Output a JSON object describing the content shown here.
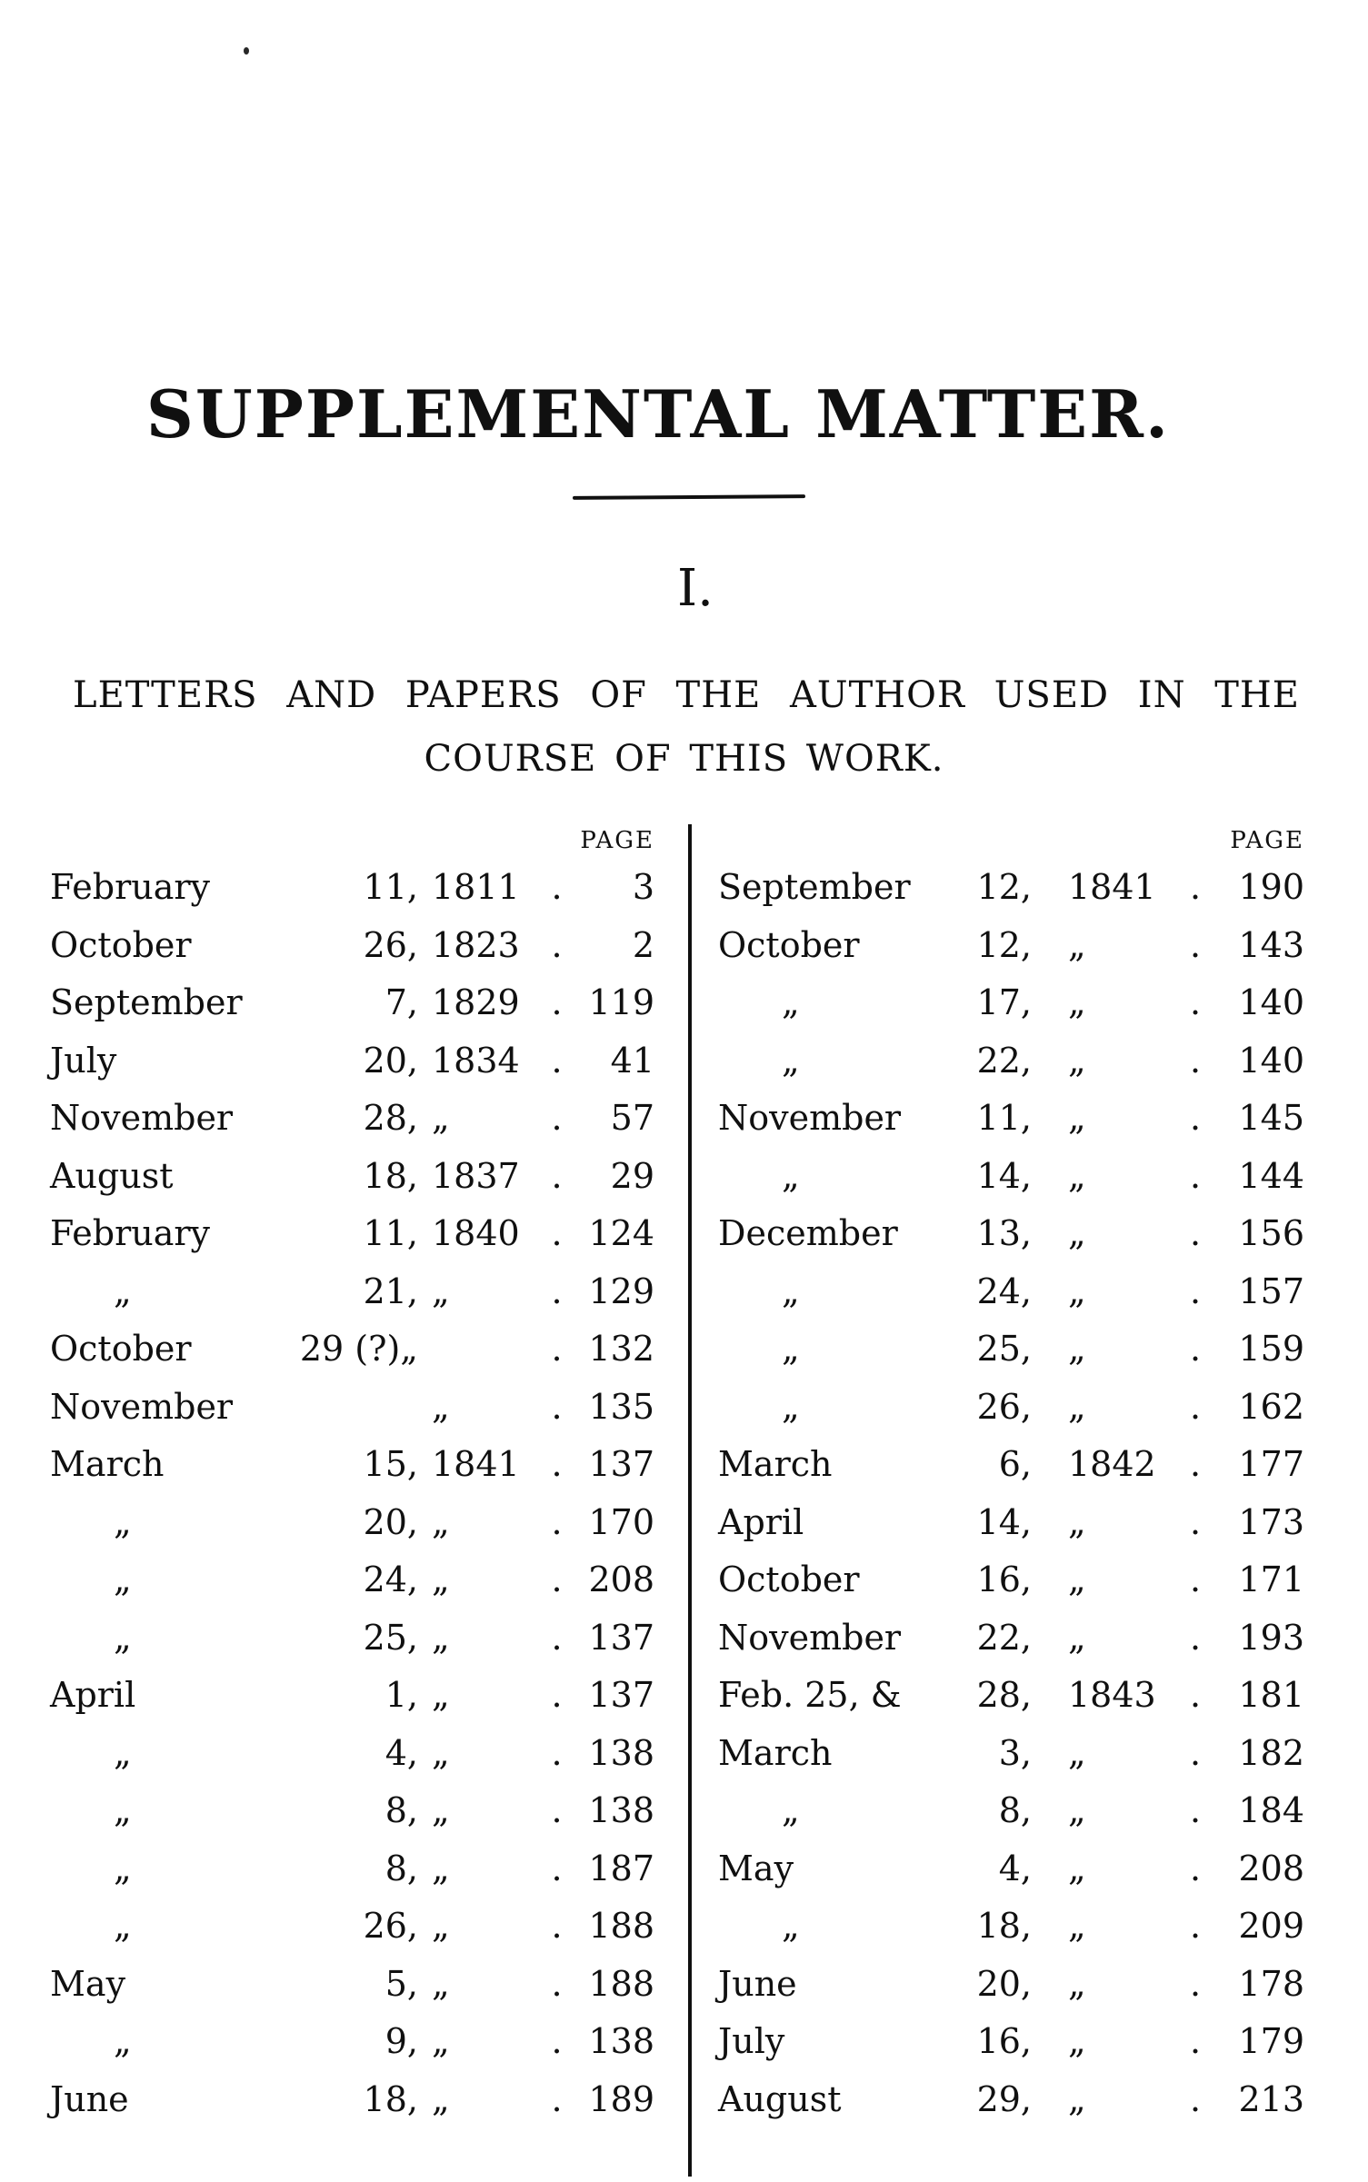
{
  "page": {
    "title": "SUPPLEMENTAL MATTER.",
    "section_numeral": "I.",
    "heading_line1": "LETTERS AND PAPERS OF THE AUTHOR USED IN THE",
    "heading_line2": "COURSE OF THIS WORK.",
    "page_col_header": "PAGE",
    "leader_dot": ".",
    "ditto_mark": "„",
    "ink_color": "#101010",
    "paper_color": "#ffffff"
  },
  "left_column": {
    "rows": [
      {
        "month": "February",
        "day": "11,",
        "year": "1811",
        "page": "3"
      },
      {
        "month": "October",
        "day": "26,",
        "year": "1823",
        "page": "2"
      },
      {
        "month": "September",
        "day": "7,",
        "year": "1829",
        "page": "119"
      },
      {
        "month": "July",
        "day": "20,",
        "year": "1834",
        "page": "41"
      },
      {
        "month": "November",
        "day": "28,",
        "year": "„",
        "page": "57"
      },
      {
        "month": "August",
        "day": "18,",
        "year": "1837",
        "page": "29"
      },
      {
        "month": "February",
        "day": "11,",
        "year": "1840",
        "page": "124"
      },
      {
        "month": "„",
        "day": "21,",
        "year": "„",
        "page": "129"
      },
      {
        "month": "October",
        "day": "29 (?)„",
        "year": "",
        "page": "132"
      },
      {
        "month": "November",
        "day": "",
        "year": "„",
        "page": "135"
      },
      {
        "month": "March",
        "day": "15,",
        "year": "1841",
        "page": "137"
      },
      {
        "month": "„",
        "day": "20,",
        "year": "„",
        "page": "170"
      },
      {
        "month": "„",
        "day": "24,",
        "year": "„",
        "page": "208"
      },
      {
        "month": "„",
        "day": "25,",
        "year": "„",
        "page": "137"
      },
      {
        "month": "April",
        "day": "1,",
        "year": "„",
        "page": "137"
      },
      {
        "month": "„",
        "day": "4,",
        "year": "„",
        "page": "138"
      },
      {
        "month": "„",
        "day": "8,",
        "year": "„",
        "page": "138"
      },
      {
        "month": "„",
        "day": "8,",
        "year": "„",
        "page": "187"
      },
      {
        "month": "„",
        "day": "26,",
        "year": "„",
        "page": "188"
      },
      {
        "month": "May",
        "day": "5,",
        "year": "„",
        "page": "188"
      },
      {
        "month": "„",
        "day": "9,",
        "year": "„",
        "page": "138"
      },
      {
        "month": "June",
        "day": "18,",
        "year": "„",
        "page": "189"
      }
    ]
  },
  "right_column": {
    "rows": [
      {
        "month": "September",
        "day": "12,",
        "year": "1841",
        "page": "190"
      },
      {
        "month": "October",
        "day": "12,",
        "year": "„",
        "page": "143"
      },
      {
        "month": "„",
        "day": "17,",
        "year": "„",
        "page": "140"
      },
      {
        "month": "„",
        "day": "22,",
        "year": "„",
        "page": "140"
      },
      {
        "month": "November",
        "day": "11,",
        "year": "„",
        "page": "145"
      },
      {
        "month": "„",
        "day": "14,",
        "year": "„",
        "page": "144"
      },
      {
        "month": "December",
        "day": "13,",
        "year": "„",
        "page": "156"
      },
      {
        "month": "„",
        "day": "24,",
        "year": "„",
        "page": "157"
      },
      {
        "month": "„",
        "day": "25,",
        "year": "„",
        "page": "159"
      },
      {
        "month": "„",
        "day": "26,",
        "year": "„",
        "page": "162"
      },
      {
        "month": "March",
        "day": "6,",
        "year": "1842",
        "page": "177"
      },
      {
        "month": "April",
        "day": "14,",
        "year": "„",
        "page": "173"
      },
      {
        "month": "October",
        "day": "16,",
        "year": "„",
        "page": "171"
      },
      {
        "month": "November",
        "day": "22,",
        "year": "„",
        "page": "193"
      },
      {
        "month": "Feb. 25, &",
        "day": "28,",
        "year": "1843",
        "page": "181"
      },
      {
        "month": "March",
        "day": "3,",
        "year": "„",
        "page": "182"
      },
      {
        "month": "„",
        "day": "8,",
        "year": "„",
        "page": "184"
      },
      {
        "month": "May",
        "day": "4,",
        "year": "„",
        "page": "208"
      },
      {
        "month": "„",
        "day": "18,",
        "year": "„",
        "page": "209"
      },
      {
        "month": "June",
        "day": "20,",
        "year": "„",
        "page": "178"
      },
      {
        "month": "July",
        "day": "16,",
        "year": "„",
        "page": "179"
      },
      {
        "month": "August",
        "day": "29,",
        "year": "„",
        "page": "213"
      }
    ]
  }
}
